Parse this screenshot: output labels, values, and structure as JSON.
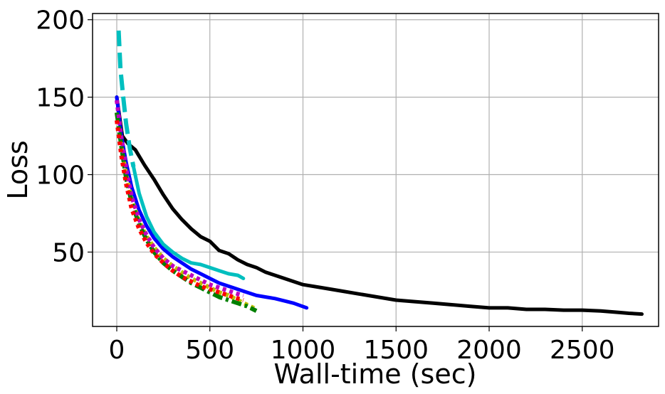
{
  "chart_data": {
    "type": "line",
    "title": "",
    "xlabel": "Wall-time (sec)",
    "ylabel": "Loss",
    "xlim": [
      -130,
      2910
    ],
    "ylim": [
      2,
      204
    ],
    "xticks": [
      0,
      500,
      1000,
      1500,
      2000,
      2500
    ],
    "yticks": [
      50,
      100,
      150,
      200
    ],
    "grid": true,
    "series": [
      {
        "color": "#000000",
        "dash": "solid",
        "width": 5,
        "x": [
          0,
          30,
          60,
          100,
          150,
          200,
          250,
          300,
          350,
          400,
          450,
          500,
          550,
          600,
          650,
          700,
          750,
          800,
          850,
          900,
          1000,
          1100,
          1200,
          1300,
          1400,
          1500,
          1600,
          1700,
          1800,
          1900,
          2000,
          2100,
          2200,
          2300,
          2400,
          2500,
          2600,
          2700,
          2750,
          2820
        ],
        "y": [
          150,
          125,
          120,
          116,
          106,
          97,
          87,
          78,
          71,
          65,
          60,
          57,
          51,
          49,
          45,
          42,
          40,
          37,
          35,
          33,
          29,
          27,
          25,
          23,
          21,
          19,
          18,
          17,
          16,
          15,
          14,
          14,
          13,
          13,
          12.5,
          12.5,
          12,
          11,
          10.5,
          10
        ]
      },
      {
        "color": "#0000ff",
        "dash": "solid",
        "width": 5,
        "x": [
          0,
          25,
          50,
          80,
          120,
          160,
          200,
          250,
          300,
          350,
          400,
          450,
          500,
          550,
          600,
          650,
          700,
          750,
          800,
          850,
          900,
          950,
          1020
        ],
        "y": [
          150,
          125,
          108,
          92,
          77,
          67,
          59,
          52,
          47,
          43,
          39,
          36,
          33,
          30,
          28,
          26,
          24,
          22,
          21,
          20,
          18.5,
          17,
          14
        ]
      },
      {
        "color": "#00bfbf",
        "dash": "longdash",
        "width": 6,
        "x": [
          10,
          20,
          35,
          50,
          70,
          90
        ],
        "y": [
          193,
          168,
          150,
          133,
          117,
          105
        ]
      },
      {
        "color": "#00bfbf",
        "dash": "solid",
        "width": 5,
        "x": [
          90,
          120,
          160,
          200,
          250,
          300,
          350,
          400,
          450,
          500,
          550,
          600,
          650,
          680
        ],
        "y": [
          105,
          88,
          73,
          63,
          55,
          50,
          46,
          43,
          42,
          40,
          38,
          36,
          35,
          33
        ]
      },
      {
        "color": "#bfbf00",
        "dash": "dotted",
        "width": 6,
        "x": [
          0,
          25,
          50,
          80,
          120,
          160,
          200,
          250,
          300,
          350,
          400,
          450,
          500,
          550,
          600,
          650,
          700,
          750
        ],
        "y": [
          140,
          118,
          100,
          84,
          70,
          60,
          53,
          46,
          41,
          37,
          33,
          30,
          27,
          24,
          22,
          19,
          16,
          13
        ]
      },
      {
        "color": "#008000",
        "dash": "dashdot",
        "width": 6,
        "x": [
          0,
          25,
          50,
          80,
          120,
          160,
          200,
          250,
          300,
          350,
          400,
          450,
          500,
          550,
          600,
          650,
          700,
          750
        ],
        "y": [
          140,
          118,
          98,
          82,
          68,
          58,
          50,
          43,
          38,
          34,
          30,
          27,
          24,
          21,
          19,
          17,
          15,
          12
        ]
      },
      {
        "color": "#bf00bf",
        "dash": "dotted",
        "width": 6,
        "x": [
          0,
          25,
          50,
          80,
          120,
          160,
          200,
          250,
          300,
          350,
          400,
          450,
          500,
          550,
          600,
          650,
          680
        ],
        "y": [
          148,
          124,
          104,
          86,
          71,
          61,
          53,
          46,
          41,
          38,
          35,
          32,
          29,
          27,
          25,
          23,
          22
        ]
      },
      {
        "color": "#ff0000",
        "dash": "dotted",
        "width": 6,
        "x": [
          0,
          25,
          50,
          80,
          120,
          160,
          200,
          250,
          300,
          350,
          400,
          450,
          500,
          550,
          600,
          650,
          680
        ],
        "y": [
          135,
          112,
          94,
          78,
          65,
          56,
          49,
          43,
          38,
          34,
          31,
          28,
          26,
          24,
          22,
          20,
          19
        ]
      }
    ]
  }
}
